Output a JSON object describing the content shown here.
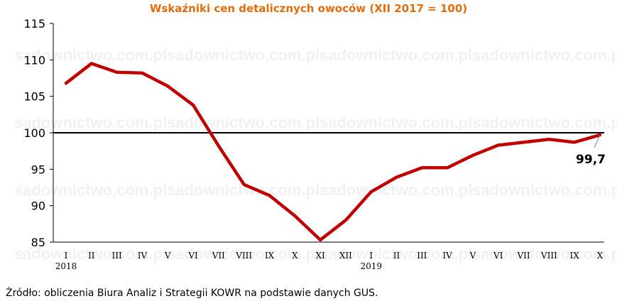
{
  "chart_data": {
    "type": "line",
    "title": "Wskaźniki cen detalicznych owoców (XII 2017 = 100)",
    "categories": [
      "I",
      "II",
      "III",
      "IV",
      "V",
      "VI",
      "VII",
      "VIII",
      "IX",
      "X",
      "XI",
      "XII",
      "I",
      "II",
      "III",
      "IV",
      "V",
      "VI",
      "VII",
      "VIII",
      "IX",
      "X"
    ],
    "year_labels": [
      {
        "index": 0,
        "label": "2018"
      },
      {
        "index": 12,
        "label": "2019"
      }
    ],
    "series": [
      {
        "color": "#c00000",
        "values": [
          106.8,
          109.5,
          108.3,
          108.2,
          106.4,
          103.8,
          98.2,
          92.9,
          91.4,
          88.6,
          85.3,
          88.0,
          91.9,
          93.9,
          95.2,
          95.2,
          96.9,
          98.3,
          98.7,
          99.1,
          98.7,
          99.7
        ]
      }
    ],
    "y_ticks": [
      85,
      90,
      95,
      100,
      105,
      110,
      115
    ],
    "ylim": [
      85,
      115
    ],
    "reference_line": 100,
    "last_value_label": "99,7",
    "xlabel": "",
    "ylabel": ""
  },
  "watermark": "sadownictwo.com.pl",
  "source_note": "Źródło: obliczenia Biura Analiz i Strategii KOWR na podstawie danych GUS."
}
